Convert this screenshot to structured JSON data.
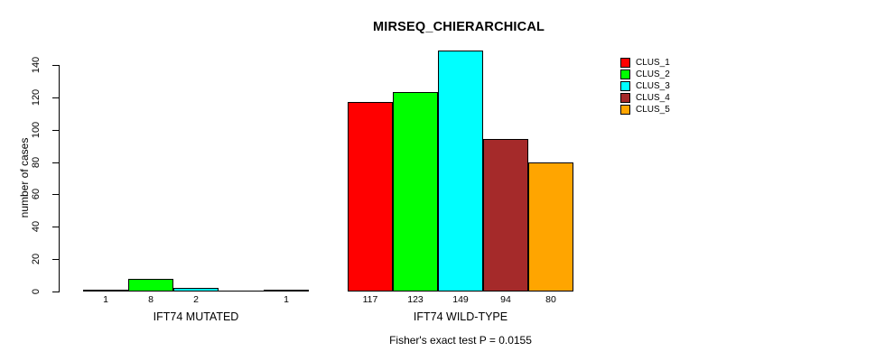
{
  "chart_data": {
    "type": "bar",
    "title": "MIRSEQ_CHIERARCHICAL",
    "ylabel": "number of cases",
    "subtitle": "Fisher's exact test P = 0.0155",
    "categories": [
      "IFT74 MUTATED",
      "IFT74 WILD-TYPE"
    ],
    "yticks": [
      0,
      20,
      40,
      60,
      80,
      100,
      120,
      140
    ],
    "ylim": [
      0,
      150
    ],
    "grid": false,
    "legend_position": "topright",
    "bar_value_labels_shown": true,
    "series": [
      {
        "name": "CLUS_1",
        "color": "#FF0000",
        "values": [
          1,
          117
        ]
      },
      {
        "name": "CLUS_2",
        "color": "#00FF00",
        "values": [
          8,
          123
        ]
      },
      {
        "name": "CLUS_3",
        "color": "#00FFFF",
        "values": [
          2,
          149
        ]
      },
      {
        "name": "CLUS_4",
        "color": "#A52A2A",
        "values": [
          0,
          94
        ]
      },
      {
        "name": "CLUS_5",
        "color": "#FFA500",
        "values": [
          1,
          80
        ]
      }
    ]
  }
}
